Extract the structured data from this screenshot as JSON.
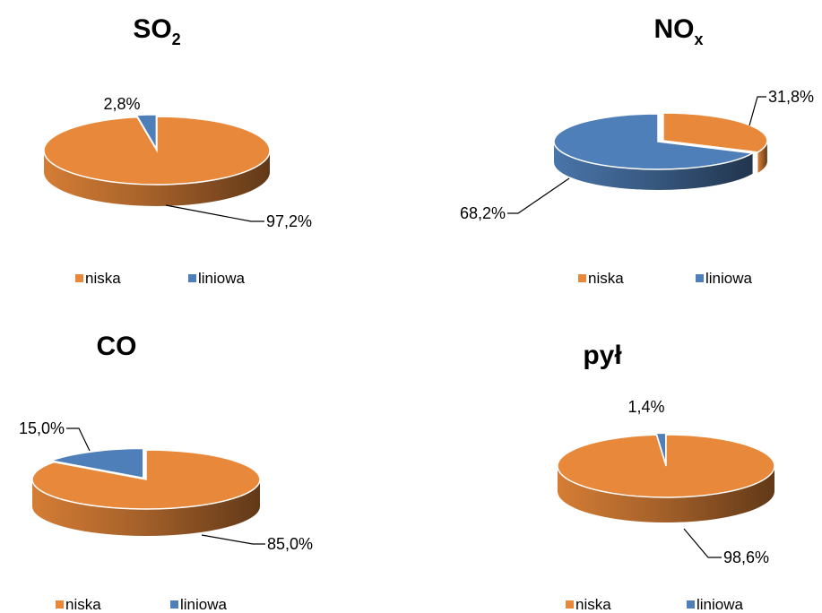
{
  "colors": {
    "niska": "#E8883A",
    "liniowa": "#4F7FB8"
  },
  "chart_data": [
    {
      "type": "pie",
      "style": "3d",
      "title": "SO2",
      "title_base": "SO",
      "title_sub": "2",
      "categories": [
        "niska",
        "liniowa"
      ],
      "values": [
        97.2,
        2.8
      ],
      "labels": [
        "97,2%",
        "2,8%"
      ],
      "exploded": "liniowa",
      "legend": [
        "niska",
        "liniowa"
      ],
      "legend_position": "bottom"
    },
    {
      "type": "pie",
      "style": "3d",
      "title": "NOx",
      "title_base": "NO",
      "title_sub": "x",
      "categories": [
        "niska",
        "liniowa"
      ],
      "values": [
        31.8,
        68.2
      ],
      "labels": [
        "31,8%",
        "68,2%"
      ],
      "exploded": "niska",
      "legend": [
        "niska",
        "liniowa"
      ],
      "legend_position": "bottom"
    },
    {
      "type": "pie",
      "style": "3d",
      "title": "CO",
      "title_base": "CO",
      "title_sub": "",
      "categories": [
        "niska",
        "liniowa"
      ],
      "values": [
        85.0,
        15.0
      ],
      "labels": [
        "85,0%",
        "15,0%"
      ],
      "exploded": "liniowa",
      "legend": [
        "niska",
        "liniowa"
      ],
      "legend_position": "bottom"
    },
    {
      "type": "pie",
      "style": "3d",
      "title": "pył",
      "title_base": "pył",
      "title_sub": "",
      "categories": [
        "niska",
        "liniowa"
      ],
      "values": [
        98.6,
        1.4
      ],
      "labels": [
        "98,6%",
        "1,4%"
      ],
      "exploded": "liniowa",
      "legend": [
        "niska",
        "liniowa"
      ],
      "legend_position": "bottom"
    }
  ]
}
